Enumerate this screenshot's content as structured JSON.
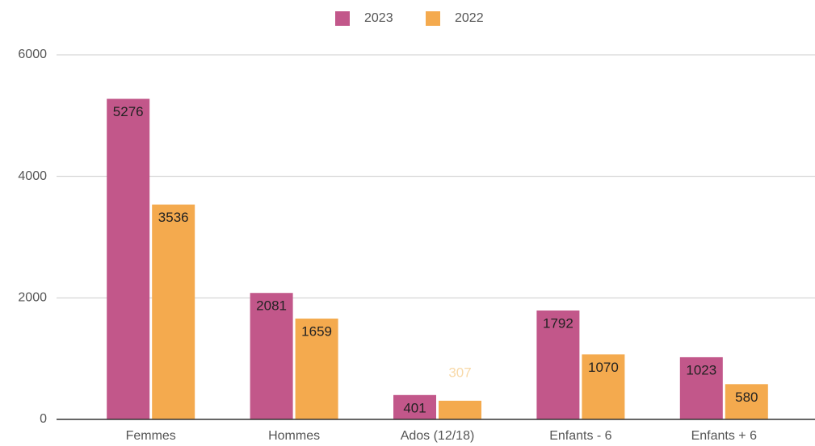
{
  "chart_data": {
    "type": "bar",
    "categories": [
      "Femmes",
      "Hommes",
      "Ados (12/18)",
      "Enfants - 6",
      "Enfants + 6"
    ],
    "series": [
      {
        "name": "2023",
        "color": "#c2578a",
        "values": [
          5276,
          2081,
          401,
          1792,
          1023
        ]
      },
      {
        "name": "2022",
        "color": "#f4aa4e",
        "values": [
          3536,
          1659,
          307,
          1070,
          580
        ]
      }
    ],
    "ylim": [
      0,
      6000
    ],
    "yticks": [
      0,
      2000,
      4000,
      6000
    ],
    "grid": true,
    "legend": "top"
  }
}
